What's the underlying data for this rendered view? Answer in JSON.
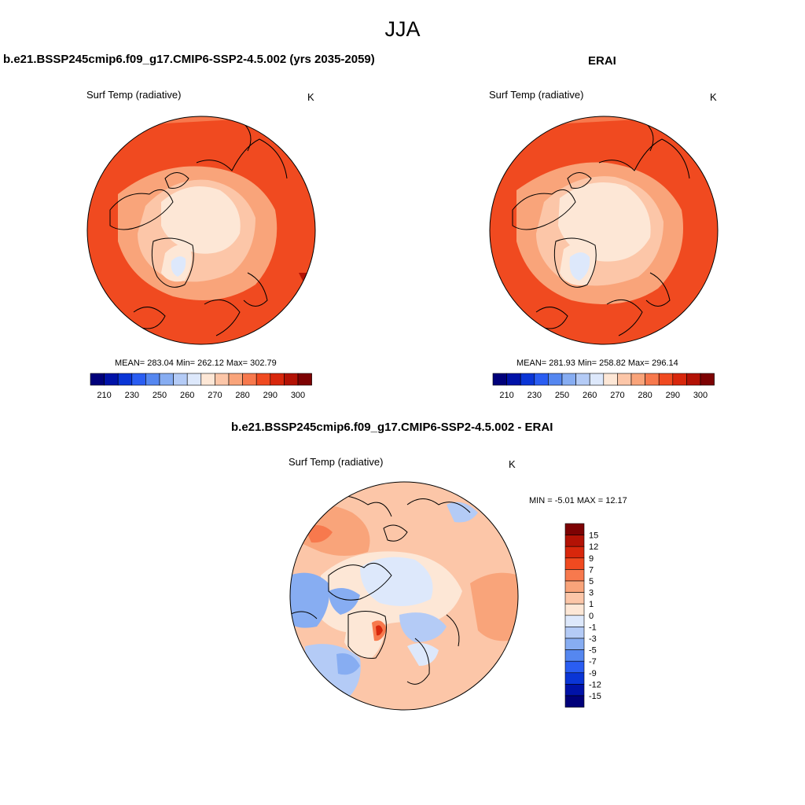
{
  "figure": {
    "title": "JJA"
  },
  "panels": [
    {
      "title": "b.e21.BSSP245cmip6.f09_g17.CMIP6-SSP2-4.5.002 (yrs 2035-2059)",
      "variable": "Surf Temp (radiative)",
      "units": "K",
      "stats": "MEAN= 283.04  Min= 262.12  Max= 302.79",
      "colorbar": {
        "colors": [
          "#00007a",
          "#0012a8",
          "#0a35d6",
          "#2a5df2",
          "#5587f0",
          "#87adf2",
          "#b4cbf6",
          "#dde8fb",
          "#fde7d6",
          "#fcc6a8",
          "#f9a47a",
          "#f7794d",
          "#f04a20",
          "#d8270c",
          "#b31205",
          "#7d0203"
        ],
        "labels": [
          "210",
          "230",
          "250",
          "260",
          "270",
          "280",
          "290",
          "300"
        ]
      }
    },
    {
      "title": "ERAI",
      "variable": "Surf Temp (radiative)",
      "units": "K",
      "stats": "MEAN= 281.93  Min= 258.82  Max= 296.14",
      "colorbar": {
        "colors": [
          "#00007a",
          "#0012a8",
          "#0a35d6",
          "#2a5df2",
          "#5587f0",
          "#87adf2",
          "#b4cbf6",
          "#dde8fb",
          "#fde7d6",
          "#fcc6a8",
          "#f9a47a",
          "#f7794d",
          "#f04a20",
          "#d8270c",
          "#b31205",
          "#7d0203"
        ],
        "labels": [
          "210",
          "230",
          "250",
          "260",
          "270",
          "280",
          "290",
          "300"
        ]
      }
    },
    {
      "title": "b.e21.BSSP245cmip6.f09_g17.CMIP6-SSP2-4.5.002 - ERAI",
      "variable": "Surf Temp (radiative)",
      "units": "K",
      "stats": "MIN =  -5.01 MAX =  12.17",
      "colorbar": {
        "colors": [
          "#7d0203",
          "#b31205",
          "#d8270c",
          "#f04a20",
          "#f7794d",
          "#f9a47a",
          "#fcc6a8",
          "#fde7d6",
          "#dde8fb",
          "#b4cbf6",
          "#87adf2",
          "#5587f0",
          "#2a5df2",
          "#0a35d6",
          "#0012a8",
          "#00007a"
        ],
        "labels": [
          "15",
          "12",
          "9",
          "7",
          "5",
          "3",
          "1",
          "0",
          "-1",
          "-3",
          "-5",
          "-7",
          "-9",
          "-12",
          "-15"
        ]
      }
    }
  ]
}
